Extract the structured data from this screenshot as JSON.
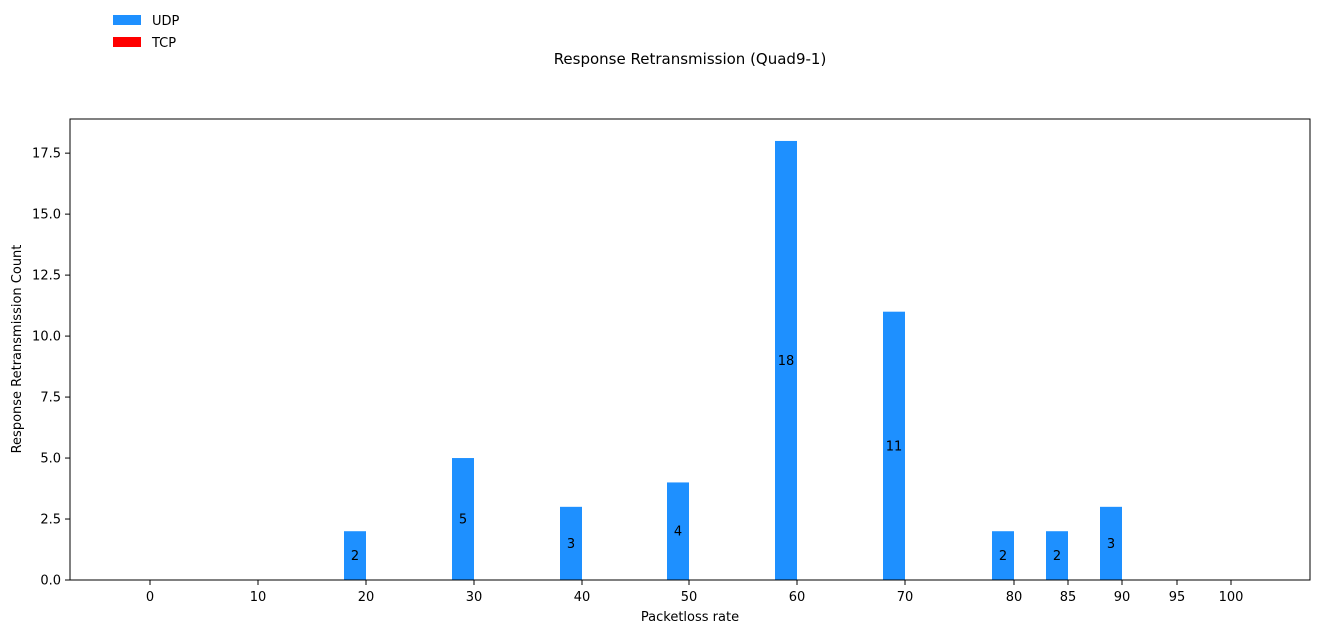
{
  "chart_data": {
    "type": "bar",
    "title": "Response Retransmission (Quad9-1)",
    "xlabel": "Packetloss rate",
    "ylabel": "Response Retransmission Count",
    "categories": [
      "0",
      "10",
      "20",
      "30",
      "40",
      "50",
      "60",
      "70",
      "80",
      "85",
      "90",
      "95",
      "100"
    ],
    "ylim": [
      0,
      18.9
    ],
    "yticks": [
      "0.0",
      "2.5",
      "5.0",
      "7.5",
      "10.0",
      "12.5",
      "15.0",
      "17.5"
    ],
    "series": [
      {
        "name": "UDP",
        "color": "#1e90ff",
        "values": [
          0,
          0,
          2,
          5,
          3,
          4,
          18,
          11,
          2,
          2,
          3,
          0,
          0
        ],
        "labels": [
          "",
          "",
          "2",
          "5",
          "3",
          "4",
          "18",
          "11",
          "2",
          "2",
          "3",
          "",
          ""
        ]
      },
      {
        "name": "TCP",
        "color": "#ff0000",
        "values": [
          0,
          0,
          0,
          0,
          0,
          0,
          0,
          0,
          0,
          0,
          0,
          0,
          0
        ],
        "labels": [
          "",
          "",
          "",
          "",
          "",
          "",
          "",
          "",
          "",
          "",
          "",
          "",
          ""
        ]
      }
    ],
    "grid": false,
    "legend_position": "top-left"
  }
}
